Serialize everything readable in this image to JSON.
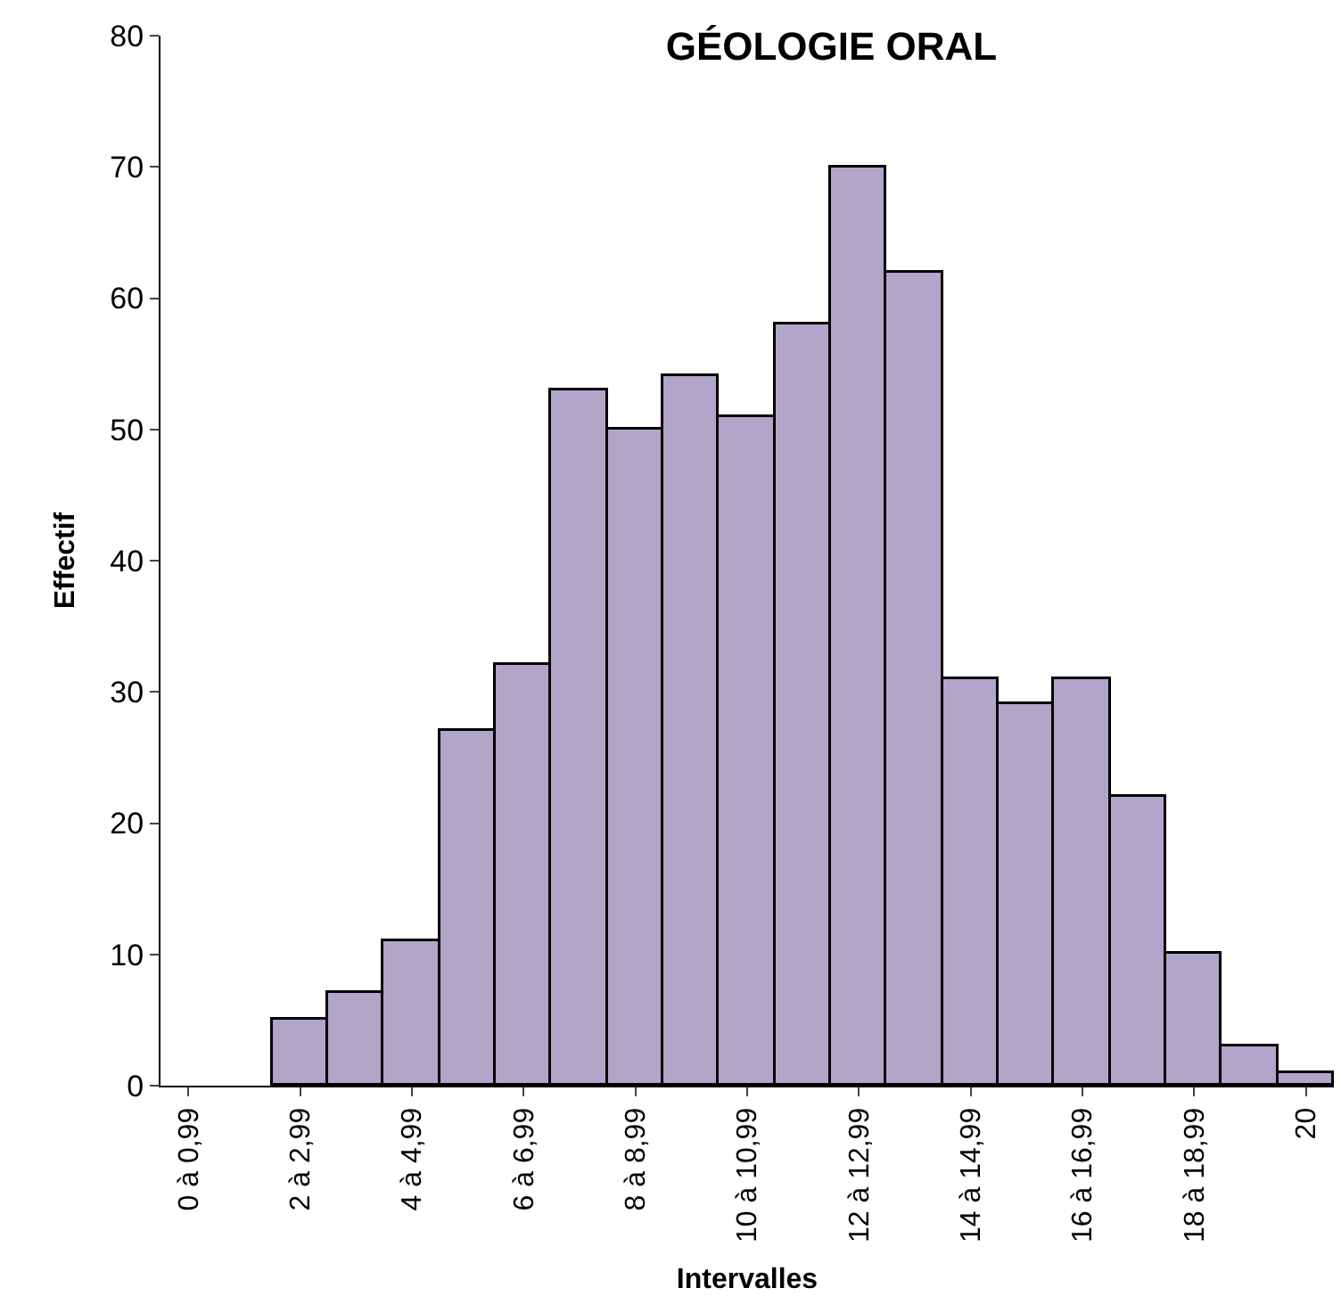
{
  "chart_data": {
    "type": "bar",
    "title": "GÉOLOGIE ORAL",
    "xlabel": "Intervalles",
    "ylabel": "Effectif",
    "categories": [
      "0 à 0,99",
      null,
      "2 à 2,99",
      null,
      "4 à 4,99",
      null,
      "6 à 6,99",
      null,
      "8 à 8,99",
      null,
      "10 à 10,99",
      null,
      "12 à 12,99",
      null,
      "14 à 14,99",
      null,
      "16 à 16,99",
      null,
      "18 à 18,99",
      null,
      "20"
    ],
    "values": [
      0,
      0,
      5,
      7,
      11,
      27,
      32,
      53,
      50,
      54,
      51,
      58,
      70,
      62,
      31,
      29,
      31,
      22,
      10,
      3,
      1
    ],
    "color": "#b1a5c9",
    "ylim": [
      0,
      80
    ],
    "yticks": [
      0,
      10,
      20,
      30,
      40,
      50,
      60,
      70,
      80
    ]
  }
}
